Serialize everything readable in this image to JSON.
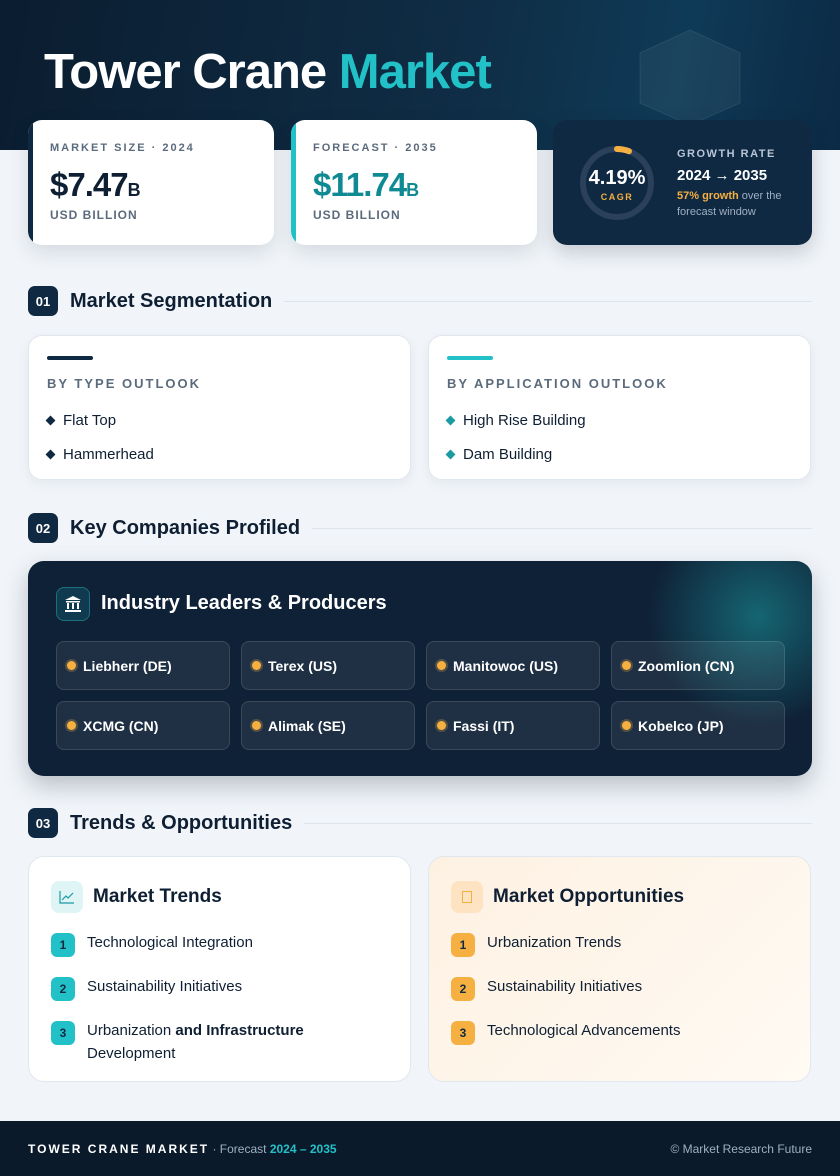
{
  "header": {
    "title_main": "Tower Crane",
    "title_accent": "Market"
  },
  "stats": [
    {
      "label": "MARKET SIZE · 2024",
      "value": "$7.47",
      "unit": "B",
      "caption": "USD BILLION"
    },
    {
      "label": "FORECAST · 2035",
      "value": "$11.74",
      "unit": "B",
      "caption": "USD BILLION"
    }
  ],
  "growth": {
    "value": "4.19%",
    "ring_label": "CAGR",
    "label": "GROWTH RATE",
    "period": "2024 → 2035",
    "highlight": "57% growth",
    "note": "over the forecast window"
  },
  "sections": [
    {
      "number": "01",
      "title": "Market Segmentation"
    },
    {
      "number": "02",
      "title": "Key Companies Profiled"
    },
    {
      "number": "03",
      "title": "Trends & Opportunities"
    }
  ],
  "segmentation": [
    {
      "title": "BY TYPE OUTLOOK",
      "items": [
        "Flat Top",
        "Hammerhead"
      ]
    },
    {
      "title": "BY APPLICATION OUTLOOK",
      "items": [
        "High Rise Building",
        "Dam Building"
      ]
    }
  ],
  "companies": {
    "title": "Industry Leaders & Producers",
    "items": [
      "Liebherr (DE)",
      "Terex (US)",
      "Manitowoc (US)",
      "Zoomlion (CN)",
      "XCMG (CN)",
      "Alimak (SE)",
      "Fassi (IT)",
      "Kobelco (JP)"
    ]
  },
  "trends": {
    "title": "Market Trends",
    "items": [
      {
        "number": "1",
        "text": "Technological Integration"
      },
      {
        "number": "2",
        "text": "Sustainability Initiatives"
      },
      {
        "number": "3",
        "text": "Urbanization",
        "bold": "and Infrastructure",
        "rest": "Development"
      }
    ]
  },
  "opportunities": {
    "title": "Market Opportunities",
    "items": [
      {
        "number": "1",
        "text": "Urbanization Trends"
      },
      {
        "number": "2",
        "text": "Sustainability Initiatives"
      },
      {
        "number": "3",
        "text": "Technological Advancements"
      }
    ]
  },
  "footer": {
    "brand": "TOWER CRANE MARKET",
    "separator": "·",
    "label": "Forecast",
    "period": "2024 – 2035",
    "copyright": "© Market Research Future"
  }
}
